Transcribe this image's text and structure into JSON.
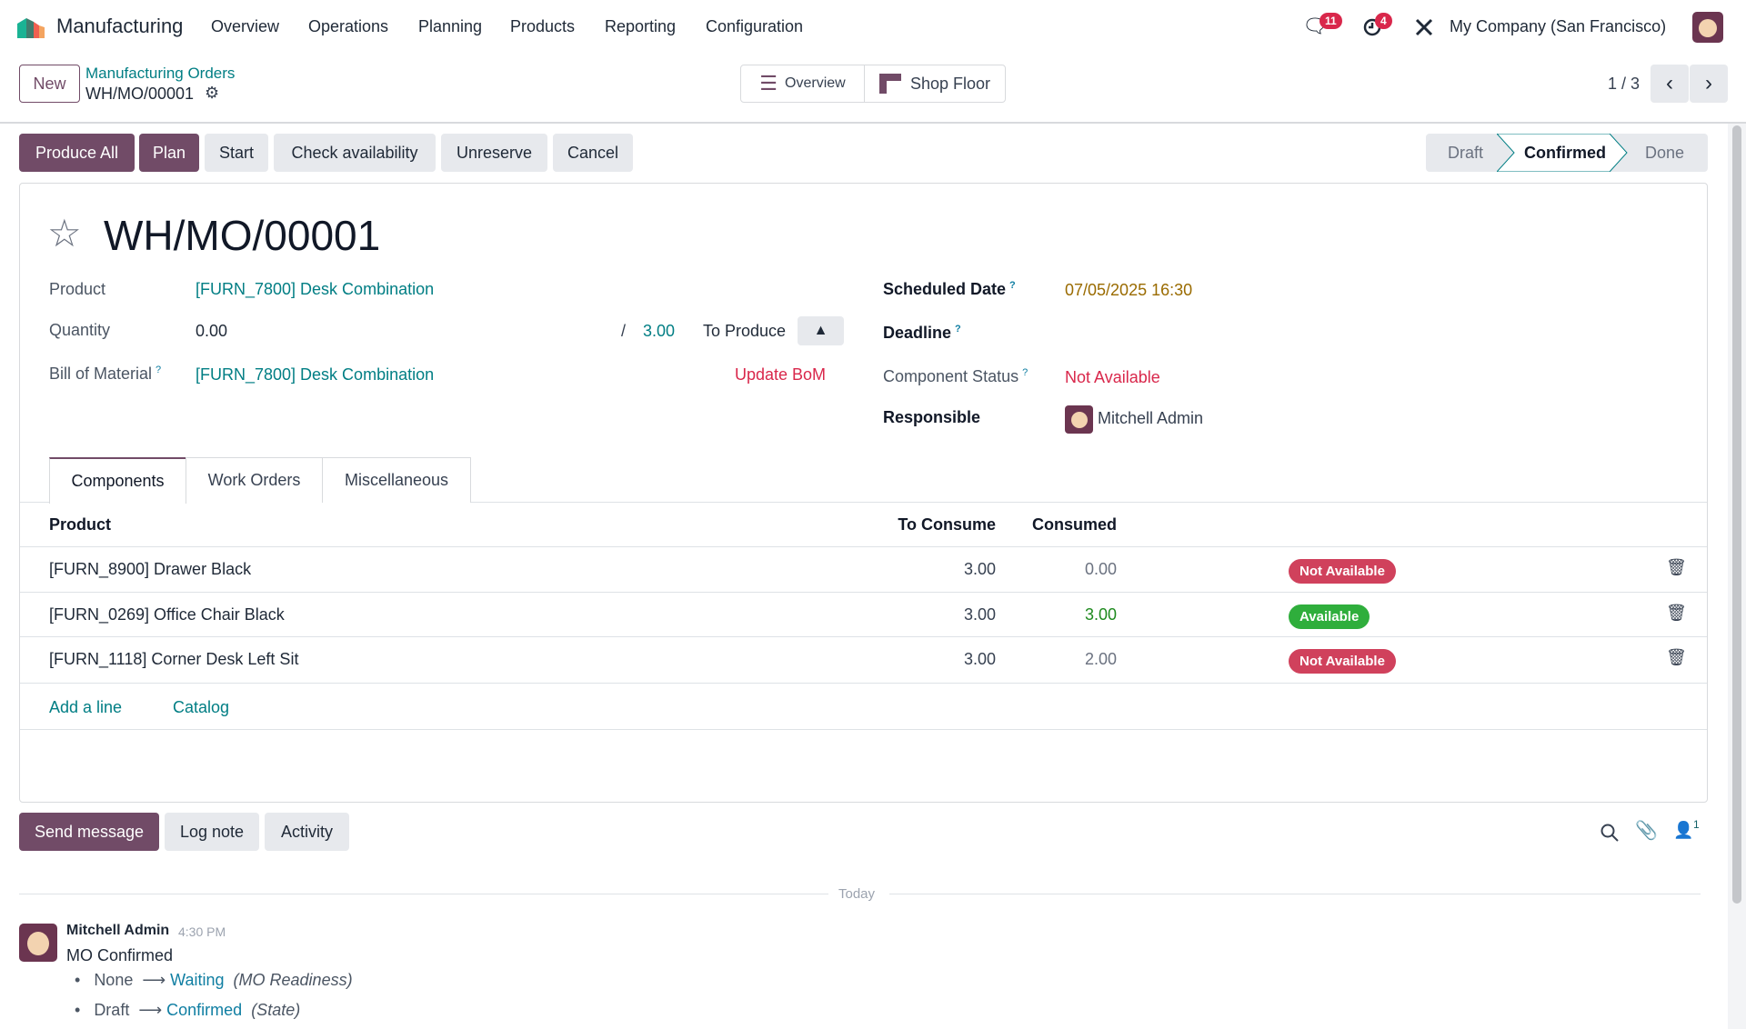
{
  "nav": {
    "app": "Manufacturing",
    "menu": [
      "Overview",
      "Operations",
      "Planning",
      "Products",
      "Reporting",
      "Configuration"
    ],
    "messages_count": "11",
    "activities_count": "4",
    "company": "My Company (San Francisco)"
  },
  "control": {
    "new_label": "New",
    "breadcrumb_parent": "Manufacturing Orders",
    "record": "WH/MO/00001",
    "overview_label": "Overview",
    "shop_floor_label": "Shop Floor",
    "pager": "1 / 3"
  },
  "actions": {
    "produce_all": "Produce All",
    "plan": "Plan",
    "start": "Start",
    "check": "Check availability",
    "unreserve": "Unreserve",
    "cancel": "Cancel"
  },
  "status": {
    "steps": [
      "Draft",
      "Confirmed",
      "Done"
    ],
    "current": "Confirmed"
  },
  "form": {
    "title": "WH/MO/00001",
    "product_label": "Product",
    "product": "[FURN_7800] Desk Combination",
    "quantity_label": "Quantity",
    "quantity": "0.00",
    "slash": "/",
    "qty_total": "3.00",
    "to_produce": "To Produce",
    "bom_label": "Bill of Material",
    "bom": "[FURN_7800] Desk Combination",
    "update_bom": "Update BoM",
    "scheduled_label": "Scheduled Date",
    "scheduled": "07/05/2025 16:30",
    "deadline_label": "Deadline",
    "component_status_label": "Component Status",
    "component_status": "Not Available",
    "responsible_label": "Responsible",
    "responsible": "Mitchell Admin",
    "help": "?"
  },
  "tabs": [
    "Components",
    "Work Orders",
    "Miscellaneous"
  ],
  "table": {
    "headers": {
      "product": "Product",
      "to_consume": "To Consume",
      "consumed": "Consumed"
    },
    "rows": [
      {
        "product": "[FURN_8900] Drawer Black",
        "to_consume": "3.00",
        "consumed": "0.00",
        "status": "Not Available"
      },
      {
        "product": "[FURN_0269] Office Chair Black",
        "to_consume": "3.00",
        "consumed": "3.00",
        "status": "Available"
      },
      {
        "product": "[FURN_1118] Corner Desk Left Sit",
        "to_consume": "3.00",
        "consumed": "2.00",
        "status": "Not Available"
      }
    ],
    "add_line": "Add a line",
    "catalog": "Catalog"
  },
  "chatter": {
    "send": "Send message",
    "log": "Log note",
    "activity": "Activity",
    "followers": "1",
    "today": "Today",
    "message": {
      "author": "Mitchell Admin",
      "time": "4:30 PM",
      "body": "MO Confirmed",
      "changes": [
        {
          "from": "None",
          "to": "Waiting",
          "field": "(MO Readiness)"
        },
        {
          "from": "Draft",
          "to": "Confirmed",
          "field": "(State)"
        }
      ]
    }
  },
  "colors": {
    "brand": "#714b67",
    "link": "#017e84",
    "danger": "#d9274b",
    "success": "#28a745",
    "date": "#9a6b00"
  }
}
